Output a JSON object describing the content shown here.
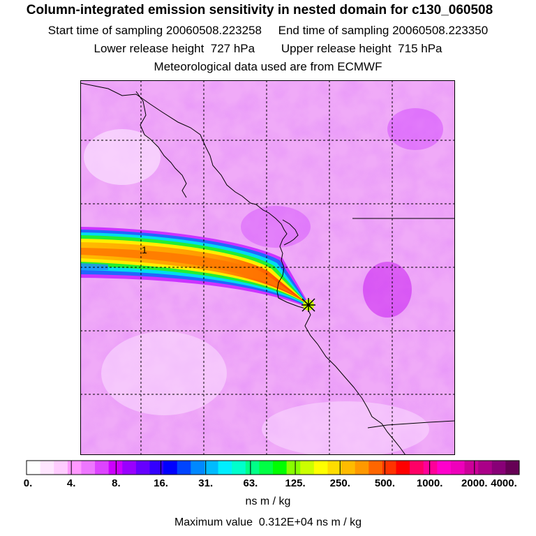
{
  "header": {
    "title": "Column-integrated emission sensitivity in nested domain for c130_060508",
    "sampling_line": "Start time of sampling 20060508.223258     End time of sampling 20060508.223350",
    "release_line": "Lower release height  727 hPa        Upper release height  715 hPa",
    "met_line": "Meteorological data used are from ECMWF"
  },
  "map": {
    "plume_label": "1",
    "release_marker": "release-point"
  },
  "legend": {
    "ticks": [
      "0.",
      "4.",
      "8.",
      "16.",
      "31.",
      "63.",
      "125.",
      "250.",
      "500.",
      "1000.",
      "2000.",
      "4000."
    ],
    "colors": [
      "#ffffff",
      "#ffe6ff",
      "#ffccff",
      "#ff99ff",
      "#ee77ff",
      "#dd44ff",
      "#cc00ff",
      "#9900ff",
      "#6600ff",
      "#3300ff",
      "#0000ff",
      "#0044ff",
      "#0088ff",
      "#00bbff",
      "#00eeff",
      "#00ffcc",
      "#00ff88",
      "#00ff44",
      "#00ff00",
      "#88ff00",
      "#ccff00",
      "#ffff00",
      "#ffdd00",
      "#ffbb00",
      "#ff9900",
      "#ff6600",
      "#ff3300",
      "#ff0000",
      "#ff0066",
      "#ff0099",
      "#ff00cc",
      "#ee00bb",
      "#cc0099",
      "#aa0088",
      "#880077",
      "#660055"
    ],
    "unit": "ns m / kg",
    "max_value_text": "Maximum value  0.312E+04 ns m / kg"
  }
}
